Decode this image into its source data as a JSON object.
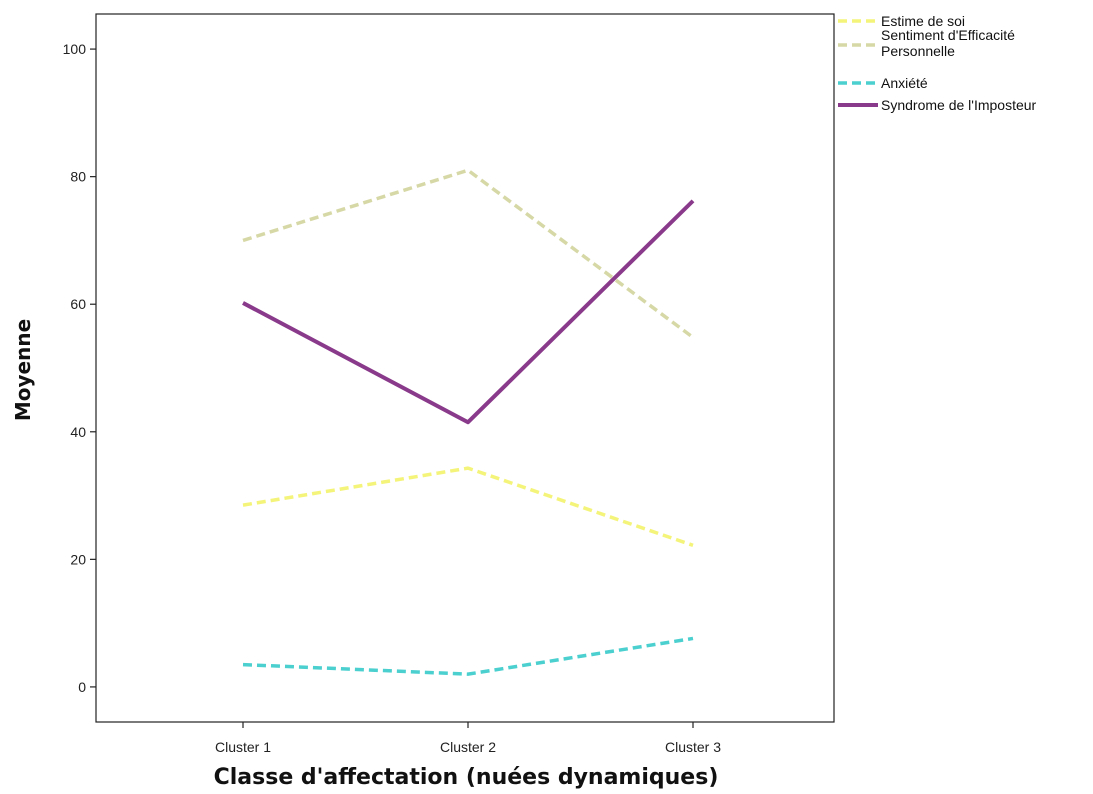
{
  "chart_data": {
    "type": "line",
    "categories": [
      "Cluster 1",
      "Cluster 2",
      "Cluster 3"
    ],
    "series": [
      {
        "name": "Estime de soi",
        "values": [
          28.5,
          34.3,
          22.2
        ],
        "color": "#f4f47a",
        "dash": "dashed"
      },
      {
        "name": "Sentiment d'Efficacité Personnelle",
        "values": [
          70.0,
          81.0,
          54.8
        ],
        "color": "#d6d8a6",
        "dash": "dashed"
      },
      {
        "name": "Anxiété",
        "values": [
          3.5,
          2.0,
          7.6
        ],
        "color": "#4ccfcf",
        "dash": "dashed"
      },
      {
        "name": "Syndrome de l'Imposteur",
        "values": [
          60.2,
          41.5,
          76.2
        ],
        "color": "#8a3a8a",
        "dash": "solid"
      }
    ],
    "xlabel": "Classe d'affectation (nuées dynamiques)",
    "ylabel": "Moyenne",
    "ylim": [
      -5.5,
      105.5
    ],
    "yticks": [
      0,
      20,
      40,
      60,
      80,
      100
    ],
    "grid": false,
    "legend_position": "top-right"
  }
}
